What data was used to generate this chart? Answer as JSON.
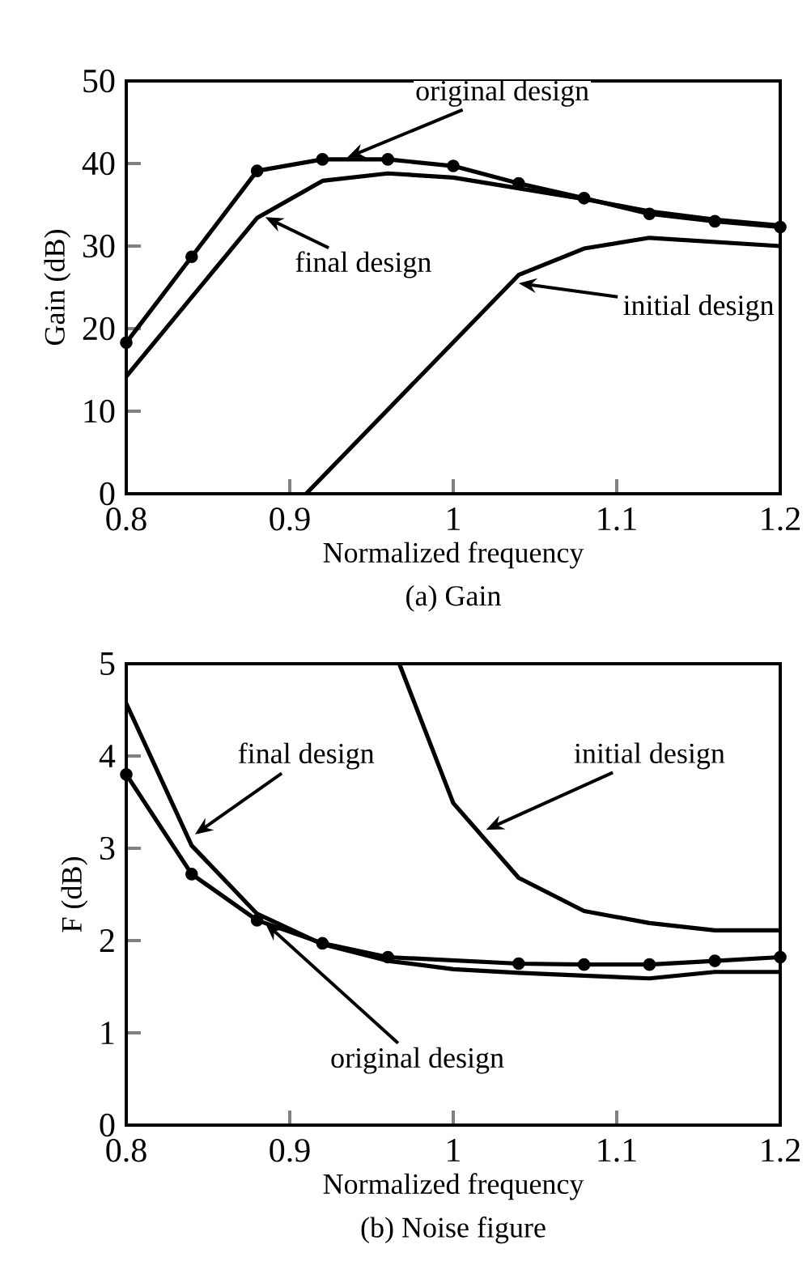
{
  "chart_data": [
    {
      "type": "line",
      "title": "(a)  Gain",
      "xlabel": "Normalized frequency",
      "ylabel": "Gain (dB)",
      "xlim": [
        0.8,
        1.2
      ],
      "ylim": [
        0,
        50
      ],
      "xticks": [
        0.8,
        0.9,
        1,
        1.1,
        1.2
      ],
      "yticks": [
        0,
        10,
        20,
        30,
        40,
        50
      ],
      "series": [
        {
          "color": "#000000",
          "marker": "circle",
          "x": [
            0.8,
            0.84,
            0.88,
            0.92,
            0.96,
            1.0,
            1.04,
            1.08,
            1.12,
            1.16,
            1.2
          ],
          "values": [
            18.3,
            28.7,
            39.1,
            40.5,
            40.5,
            39.7,
            37.6,
            35.8,
            33.9,
            33.0,
            32.3
          ]
        },
        {
          "color": "#000000",
          "marker": "none",
          "x": [
            0.8,
            0.88,
            0.92,
            0.96,
            1.0,
            1.04,
            1.08,
            1.12,
            1.16,
            1.2
          ],
          "values": [
            14.2,
            33.4,
            37.9,
            38.8,
            38.3,
            37.0,
            35.7,
            34.2,
            33.2,
            32.5
          ]
        },
        {
          "color": "#000000",
          "marker": "none",
          "x": [
            0.91,
            1.04,
            1.08,
            1.12,
            1.2
          ],
          "values": [
            0,
            26.5,
            29.7,
            31.0,
            30.0
          ]
        }
      ],
      "annotations": [
        {
          "text": "original design",
          "x": 0.935,
          "y": 40.7
        },
        {
          "text": "final design",
          "x": 0.885,
          "y": 33.5
        },
        {
          "text": "initial design",
          "x": 1.04,
          "y": 25.5
        }
      ]
    },
    {
      "type": "line",
      "title": "(b) Noise figure",
      "xlabel": "Normalized frequency",
      "ylabel": "F (dB)",
      "xlim": [
        0.8,
        1.2
      ],
      "ylim": [
        0,
        5
      ],
      "xticks": [
        0.8,
        0.9,
        1,
        1.1,
        1.2
      ],
      "yticks": [
        0,
        1,
        2,
        3,
        4,
        5
      ],
      "series": [
        {
          "color": "#000000",
          "marker": "circle",
          "x": [
            0.8,
            0.84,
            0.88,
            0.92,
            0.96,
            1.04,
            1.08,
            1.12,
            1.16,
            1.2
          ],
          "values": [
            3.8,
            2.72,
            2.22,
            1.97,
            1.82,
            1.75,
            1.74,
            1.74,
            1.78,
            1.82
          ]
        },
        {
          "color": "#000000",
          "marker": "none",
          "x": [
            0.8,
            0.84,
            0.88,
            0.92,
            0.96,
            1.0,
            1.04,
            1.08,
            1.12,
            1.16,
            1.2
          ],
          "values": [
            4.57,
            3.03,
            2.29,
            1.96,
            1.78,
            1.69,
            1.65,
            1.62,
            1.59,
            1.66,
            1.66
          ]
        },
        {
          "color": "#000000",
          "marker": "none",
          "x": [
            0.967,
            1.0,
            1.04,
            1.08,
            1.12,
            1.16,
            1.2
          ],
          "values": [
            5,
            3.49,
            2.68,
            2.32,
            2.19,
            2.11,
            2.11
          ]
        }
      ],
      "annotations": [
        {
          "text": "original design",
          "x": 0.885,
          "y": 2.19
        },
        {
          "text": "final design",
          "x": 0.842,
          "y": 3.15
        },
        {
          "text": "initial design",
          "x": 1.02,
          "y": 3.2
        }
      ]
    }
  ]
}
